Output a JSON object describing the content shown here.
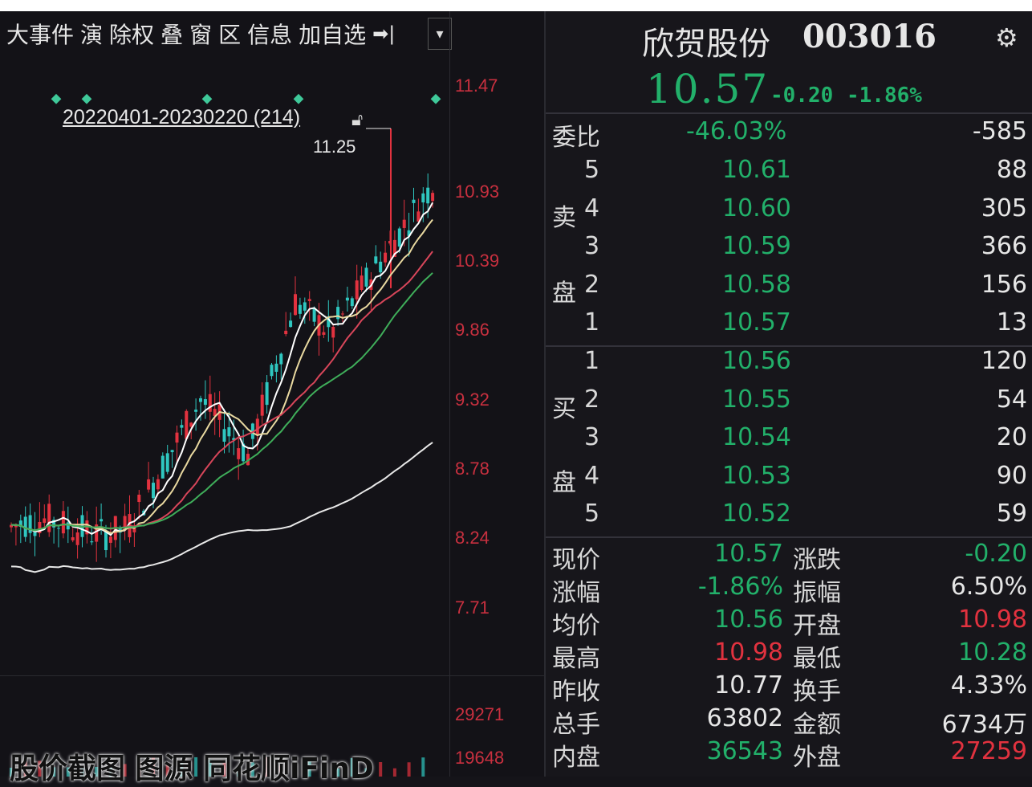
{
  "toolbar": {
    "items": [
      "大事件",
      "演",
      "除权",
      "叠",
      "窗",
      "区",
      "信息",
      "加自选",
      "➡|",
      "▾"
    ]
  },
  "chart": {
    "range_label": "20220401-20230220 (214)",
    "high_label": "11.25",
    "price_axis": [
      "11.47",
      "10.93",
      "10.39",
      "9.86",
      "9.32",
      "8.78",
      "8.24",
      "7.71"
    ],
    "volume_axis": [
      "29271",
      "19648"
    ],
    "watermark": "股价截图 图源 同花顺iFinD",
    "colors": {
      "up": "#e2323f",
      "down": "#2fc7c0",
      "ma1": "#ffffff",
      "ma2": "#e9d9a0",
      "ma3": "#d8465a",
      "ma4": "#3fae5a",
      "ma5": "#e8e8e8"
    }
  },
  "quote": {
    "name": "欣贺股份",
    "code": "003016",
    "last": "10.57",
    "change": "-0.20",
    "change_pct": "-1.86%",
    "weibi": {
      "label": "委比",
      "pct": "-46.03%",
      "diff": "-585"
    },
    "sell_label": [
      "卖",
      "盘"
    ],
    "buy_label": [
      "买",
      "盘"
    ],
    "asks": [
      {
        "level": "5",
        "price": "10.61",
        "vol": "88"
      },
      {
        "level": "4",
        "price": "10.60",
        "vol": "305"
      },
      {
        "level": "3",
        "price": "10.59",
        "vol": "366"
      },
      {
        "level": "2",
        "price": "10.58",
        "vol": "156"
      },
      {
        "level": "1",
        "price": "10.57",
        "vol": "13"
      }
    ],
    "bids": [
      {
        "level": "1",
        "price": "10.56",
        "vol": "120"
      },
      {
        "level": "2",
        "price": "10.55",
        "vol": "54"
      },
      {
        "level": "3",
        "price": "10.54",
        "vol": "20"
      },
      {
        "level": "4",
        "price": "10.53",
        "vol": "90"
      },
      {
        "level": "5",
        "price": "10.52",
        "vol": "59"
      }
    ],
    "stats": [
      {
        "k1": "现价",
        "v1": "10.57",
        "c1": "g",
        "k2": "涨跌",
        "v2": "-0.20",
        "c2": "g"
      },
      {
        "k1": "涨幅",
        "v1": "-1.86%",
        "c1": "g",
        "k2": "振幅",
        "v2": "6.50%",
        "c2": "w"
      },
      {
        "k1": "均价",
        "v1": "10.56",
        "c1": "g",
        "k2": "开盘",
        "v2": "10.98",
        "c2": "r"
      },
      {
        "k1": "最高",
        "v1": "10.98",
        "c1": "r",
        "k2": "最低",
        "v2": "10.28",
        "c2": "g"
      },
      {
        "k1": "昨收",
        "v1": "10.77",
        "c1": "w",
        "k2": "换手",
        "v2": "4.33%",
        "c2": "w"
      },
      {
        "k1": "总手",
        "v1": "63802",
        "c1": "w",
        "k2": "金额",
        "v2": "6734万",
        "c2": "w"
      },
      {
        "k1": "内盘",
        "v1": "36543",
        "c1": "g",
        "k2": "外盘",
        "v2": "27259",
        "c2": "r"
      }
    ]
  }
}
